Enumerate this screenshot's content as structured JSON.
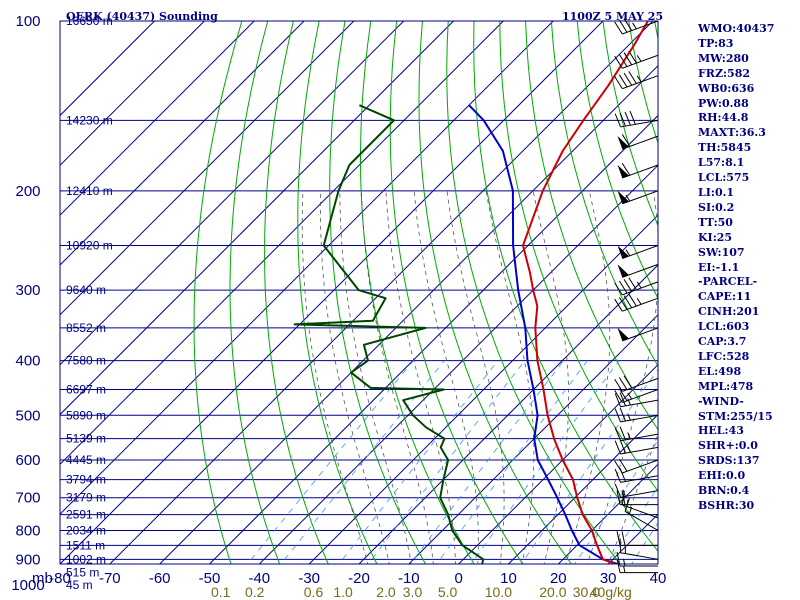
{
  "header": {
    "station": "OERK (40437) Sounding",
    "time": "1100Z  5 MAY 25"
  },
  "stats": [
    "WMO:40437",
    "TP:83",
    "MW:280",
    "FRZ:582",
    "WB0:636",
    "PW:0.88",
    "RH:44.8",
    "MAXT:36.3",
    "TH:5845",
    "L57:8.1",
    "LCL:575",
    "LI:0.1",
    "SI:0.2",
    "TT:50",
    "KI:25",
    "SW:107",
    "EI:-1.1",
    "-PARCEL-",
    "CAPE:11",
    "CINH:201",
    "LCL:603",
    "CAP:3.7",
    "LFC:528",
    "EL:498",
    "MPL:478",
    "-WIND-",
    "STM:255/15",
    "HEL:43",
    "SHR+:0.0",
    "SRDS:137",
    "EHI:0.0",
    "BRN:0.4",
    "BSHR:30"
  ],
  "colors": {
    "grid": "#00008b",
    "isotherm": "#00008b",
    "dry_adiabat": "#00aa00",
    "moist_adiabat": "#555555",
    "mixing_ratio": "#3399ff",
    "temperature": "#cc0000",
    "dewpoint": "#004400",
    "parcel": "#0000cc",
    "wind": "#000000"
  },
  "chart_data": {
    "type": "skew-t",
    "unit_label": "mb",
    "pressure_ticks": [
      100,
      200,
      300,
      400,
      500,
      600,
      700,
      800,
      900,
      1000
    ],
    "temperature_ticks": [
      -80,
      -70,
      -60,
      -50,
      -40,
      -30,
      -20,
      -10,
      0,
      10,
      20,
      30,
      40
    ],
    "mixing_ratio_labels": [
      "0.1",
      "0.2",
      "0.6",
      "1.0",
      "2.0",
      "3.0",
      "5.0",
      "10.0",
      "20.0",
      "30.0",
      "40g/kg"
    ],
    "mixing_ratio_values": [
      0.1,
      0.2,
      0.6,
      1.0,
      2.0,
      3.0,
      5.0,
      10.0,
      20.0,
      30.0,
      40
    ],
    "height_labels": [
      {
        "p": 100,
        "text": "16650 m"
      },
      {
        "p": 150,
        "text": "14230 m"
      },
      {
        "p": 200,
        "text": "12410 m"
      },
      {
        "p": 250,
        "text": "10920 m"
      },
      {
        "p": 300,
        "text": "9640 m"
      },
      {
        "p": 350,
        "text": "8552 m"
      },
      {
        "p": 400,
        "text": "7580 m"
      },
      {
        "p": 450,
        "text": "6697 m"
      },
      {
        "p": 500,
        "text": "5890 m"
      },
      {
        "p": 550,
        "text": "5139 m"
      },
      {
        "p": 600,
        "text": "4445 m"
      },
      {
        "p": 650,
        "text": "3794 m"
      },
      {
        "p": 700,
        "text": "3179 m"
      },
      {
        "p": 750,
        "text": "2591 m"
      },
      {
        "p": 800,
        "text": "2034 m"
      },
      {
        "p": 850,
        "text": "1511 m"
      },
      {
        "p": 900,
        "text": "1002 m"
      },
      {
        "p": 950,
        "text": "515 m"
      },
      {
        "p": 1000,
        "text": "45 m"
      }
    ],
    "temperature": [
      [
        937,
        36.3
      ],
      [
        925,
        33
      ],
      [
        900,
        28
      ],
      [
        850,
        24
      ],
      [
        800,
        20
      ],
      [
        750,
        15
      ],
      [
        700,
        10.5
      ],
      [
        650,
        6
      ],
      [
        600,
        0
      ],
      [
        550,
        -6
      ],
      [
        500,
        -12
      ],
      [
        450,
        -18
      ],
      [
        400,
        -25
      ],
      [
        350,
        -32
      ],
      [
        320,
        -36
      ],
      [
        300,
        -40
      ],
      [
        280,
        -44
      ],
      [
        250,
        -51
      ],
      [
        200,
        -58
      ],
      [
        170,
        -62
      ],
      [
        150,
        -64
      ],
      [
        130,
        -66
      ],
      [
        110,
        -69
      ],
      [
        100,
        -71
      ]
    ],
    "dewpoint": [
      [
        937,
        4
      ],
      [
        925,
        5
      ],
      [
        900,
        4
      ],
      [
        850,
        -3
      ],
      [
        800,
        -8
      ],
      [
        750,
        -12
      ],
      [
        700,
        -17
      ],
      [
        650,
        -20
      ],
      [
        600,
        -23
      ],
      [
        570,
        -27
      ],
      [
        550,
        -28
      ],
      [
        525,
        -34
      ],
      [
        500,
        -39
      ],
      [
        470,
        -44
      ],
      [
        450,
        -38
      ],
      [
        447,
        -53
      ],
      [
        420,
        -60
      ],
      [
        400,
        -59
      ],
      [
        375,
        -63
      ],
      [
        350,
        -54
      ],
      [
        345,
        -81
      ],
      [
        340,
        -66
      ],
      [
        310,
        -68
      ],
      [
        300,
        -75
      ],
      [
        250,
        -91
      ],
      [
        200,
        -99
      ],
      [
        180,
        -102
      ],
      [
        150,
        -102
      ],
      [
        141,
        -112
      ]
    ],
    "parcel": [
      [
        937,
        36.3
      ],
      [
        900,
        28
      ],
      [
        850,
        20.5
      ],
      [
        800,
        16
      ],
      [
        750,
        11.5
      ],
      [
        700,
        6.5
      ],
      [
        650,
        1
      ],
      [
        600,
        -5
      ],
      [
        550,
        -10
      ],
      [
        500,
        -14
      ],
      [
        450,
        -20
      ],
      [
        400,
        -27
      ],
      [
        350,
        -34
      ],
      [
        300,
        -43
      ],
      [
        250,
        -53
      ],
      [
        200,
        -64
      ],
      [
        170,
        -74
      ],
      [
        150,
        -84
      ],
      [
        141,
        -90
      ]
    ],
    "wind_barbs": [
      {
        "p": 950,
        "dir": 270,
        "spd": 15
      },
      {
        "p": 925,
        "dir": 270,
        "spd": 15
      },
      {
        "p": 900,
        "dir": 280,
        "spd": 15
      },
      {
        "p": 850,
        "dir": 270,
        "spd": 20
      },
      {
        "p": 800,
        "dir": 300,
        "spd": 15
      },
      {
        "p": 760,
        "dir": 290,
        "spd": 15
      },
      {
        "p": 720,
        "dir": 270,
        "spd": 20
      },
      {
        "p": 680,
        "dir": 260,
        "spd": 15
      },
      {
        "p": 640,
        "dir": 260,
        "spd": 20
      },
      {
        "p": 600,
        "dir": 250,
        "spd": 20
      },
      {
        "p": 570,
        "dir": 260,
        "spd": 25
      },
      {
        "p": 540,
        "dir": 260,
        "spd": 25
      },
      {
        "p": 500,
        "dir": 260,
        "spd": 25
      },
      {
        "p": 470,
        "dir": 260,
        "spd": 25
      },
      {
        "p": 450,
        "dir": 250,
        "spd": 25
      },
      {
        "p": 430,
        "dir": 250,
        "spd": 30
      },
      {
        "p": 350,
        "dir": 250,
        "spd": 50
      },
      {
        "p": 310,
        "dir": 250,
        "spd": 45
      },
      {
        "p": 290,
        "dir": 250,
        "spd": 45
      },
      {
        "p": 270,
        "dir": 250,
        "spd": 50
      },
      {
        "p": 250,
        "dir": 250,
        "spd": 55
      },
      {
        "p": 200,
        "dir": 250,
        "spd": 55
      },
      {
        "p": 180,
        "dir": 250,
        "spd": 60
      },
      {
        "p": 160,
        "dir": 250,
        "spd": 60
      },
      {
        "p": 150,
        "dir": 260,
        "spd": 40
      },
      {
        "p": 125,
        "dir": 250,
        "spd": 45
      },
      {
        "p": 115,
        "dir": 250,
        "spd": 45
      },
      {
        "p": 100,
        "dir": 250,
        "spd": 35
      }
    ],
    "grid": true
  }
}
